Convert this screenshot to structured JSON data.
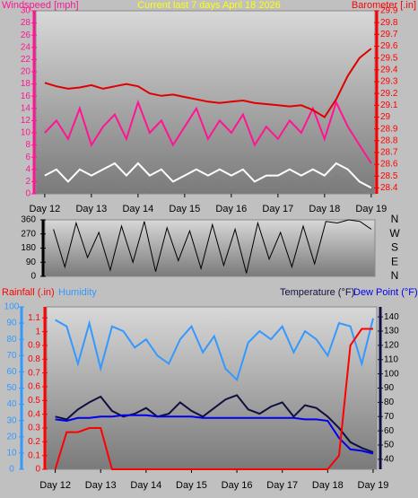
{
  "chart_data": [
    {
      "type": "line",
      "title": "Current last 7 days April 18 2026",
      "ylabel": "Windspeed [mph]",
      "y2label": "Barometer [.in]",
      "x": [
        12,
        12.25,
        12.5,
        12.75,
        13,
        13.25,
        13.5,
        13.75,
        14,
        14.25,
        14.5,
        14.75,
        15,
        15.25,
        15.5,
        15.75,
        16,
        16.25,
        16.5,
        16.75,
        17,
        17.25,
        17.5,
        17.75,
        18,
        18.25,
        18.5,
        18.75,
        19
      ],
      "xlim": [
        11.81,
        19.08
      ],
      "xticks": [
        {
          "value": 12,
          "label": "Day 12"
        },
        {
          "value": 13,
          "label": "Day 13"
        },
        {
          "value": 14,
          "label": "Day 14"
        },
        {
          "value": 15,
          "label": "Day 15"
        },
        {
          "value": 16,
          "label": "Day 16"
        },
        {
          "value": 17,
          "label": "Day 17"
        },
        {
          "value": 18,
          "label": "Day 18"
        },
        {
          "value": 19,
          "label": "Day 19"
        }
      ],
      "ylim": [
        0,
        30
      ],
      "yticks": [
        0,
        2,
        4,
        6,
        8,
        10,
        12,
        14,
        16,
        18,
        20,
        22,
        24,
        26,
        28,
        30
      ],
      "y2lim": [
        28.35,
        29.9
      ],
      "y2ticks": [
        28.4,
        28.5,
        28.6,
        28.7,
        28.8,
        28.9,
        29,
        29.1,
        29.2,
        29.3,
        29.4,
        29.5,
        29.6,
        29.7,
        29.8,
        29.9
      ],
      "series": [
        {
          "color": "#ff1493",
          "values": [
            10,
            12,
            9,
            14,
            8,
            11,
            13,
            9,
            15,
            10,
            12,
            8,
            11,
            14,
            9,
            12,
            10,
            13,
            8,
            11,
            9,
            12,
            10,
            14,
            9,
            15,
            11,
            8,
            5
          ]
        },
        {
          "color": "#808080",
          "values": [
            1,
            2,
            1,
            2,
            1,
            2,
            2,
            1,
            2,
            1,
            2,
            1,
            1,
            2,
            1,
            2,
            1,
            2,
            1,
            1,
            1,
            2,
            1,
            2,
            1,
            3,
            2,
            1,
            0
          ]
        },
        {
          "color": "#ffffff",
          "values": [
            3,
            4,
            2,
            4,
            3,
            4,
            5,
            3,
            5,
            3,
            4,
            2,
            3,
            4,
            3,
            4,
            3,
            4,
            2,
            3,
            3,
            4,
            3,
            4,
            3,
            5,
            4,
            2,
            1
          ]
        },
        {
          "color": "#e00000",
          "axis": "y2",
          "values": [
            29.29,
            29.26,
            29.24,
            29.25,
            29.27,
            29.24,
            29.26,
            29.28,
            29.26,
            29.2,
            29.18,
            29.19,
            29.17,
            29.15,
            29.13,
            29.12,
            29.13,
            29.14,
            29.12,
            29.11,
            29.1,
            29.09,
            29.1,
            29.06,
            29.0,
            29.15,
            29.35,
            29.5,
            29.58
          ]
        }
      ]
    },
    {
      "type": "line",
      "x": [
        12,
        12.25,
        12.5,
        12.75,
        13,
        13.25,
        13.5,
        13.75,
        14,
        14.25,
        14.5,
        14.75,
        15,
        15.25,
        15.5,
        15.75,
        16,
        16.25,
        16.5,
        16.75,
        17,
        17.25,
        17.5,
        17.75,
        18,
        18.25,
        18.5,
        18.75,
        19
      ],
      "xlim": [
        11.81,
        19.08
      ],
      "ylim": [
        0,
        360
      ],
      "yticks": [
        0,
        90,
        180,
        270,
        360
      ],
      "y2lim": [
        0,
        360
      ],
      "y2ticks": [
        {
          "value": 360,
          "label": "N"
        },
        {
          "value": 270,
          "label": "W"
        },
        {
          "value": 180,
          "label": "S"
        },
        {
          "value": 90,
          "label": "E"
        },
        {
          "value": 0,
          "label": "N"
        }
      ],
      "series": [
        {
          "color": "#000000",
          "values": [
            300,
            60,
            340,
            120,
            280,
            40,
            320,
            90,
            350,
            30,
            310,
            100,
            290,
            50,
            330,
            70,
            300,
            20,
            340,
            110,
            280,
            60,
            320,
            80,
            350,
            340,
            360,
            350,
            300
          ]
        }
      ]
    },
    {
      "type": "line",
      "x": [
        12,
        12.25,
        12.5,
        12.75,
        13,
        13.25,
        13.5,
        13.75,
        14,
        14.25,
        14.5,
        14.75,
        15,
        15.25,
        15.5,
        15.75,
        16,
        16.25,
        16.5,
        16.75,
        17,
        17.25,
        17.5,
        17.75,
        18,
        18.25,
        18.5,
        18.75,
        19
      ],
      "xlim": [
        11.81,
        19.08
      ],
      "xticks": [
        {
          "value": 12,
          "label": "Day 12"
        },
        {
          "value": 13,
          "label": "Day 13"
        },
        {
          "value": 14,
          "label": "Day 14"
        },
        {
          "value": 15,
          "label": "Day 15"
        },
        {
          "value": 16,
          "label": "Day 16"
        },
        {
          "value": 17,
          "label": "Day 17"
        },
        {
          "value": 18,
          "label": "Day 18"
        },
        {
          "value": 19,
          "label": "Day 19"
        }
      ],
      "ylim": [
        0,
        1.18
      ],
      "yticks": [
        0,
        0.1,
        0.2,
        0.3,
        0.4,
        0.5,
        0.6,
        0.7,
        0.8,
        0.9,
        1,
        1.1
      ],
      "y2lim": [
        33,
        147
      ],
      "y2ticks": [
        40,
        50,
        60,
        70,
        80,
        90,
        100,
        110,
        120,
        130,
        140
      ],
      "y3lim": [
        0,
        100
      ],
      "y3ticks": [
        0,
        10,
        20,
        30,
        40,
        50,
        60,
        70,
        80,
        90,
        100
      ],
      "series": [
        {
          "name": "Humidity",
          "color": "#3399ff",
          "axis": "y3",
          "values": [
            92,
            88,
            65,
            90,
            62,
            88,
            85,
            75,
            80,
            70,
            65,
            80,
            88,
            72,
            82,
            62,
            55,
            78,
            85,
            80,
            88,
            72,
            85,
            80,
            70,
            90,
            88,
            65,
            93
          ]
        },
        {
          "name": "Temperature (°F)",
          "color": "#101040",
          "axis": "y2",
          "values": [
            70,
            68,
            75,
            80,
            84,
            74,
            70,
            72,
            76,
            70,
            72,
            80,
            74,
            70,
            76,
            82,
            85,
            75,
            72,
            77,
            80,
            70,
            78,
            76,
            70,
            62,
            52,
            48,
            45
          ]
        },
        {
          "name": "Dew Point (°F)",
          "color": "#0000ee",
          "axis": "y2",
          "values": [
            68,
            67,
            69,
            69,
            70,
            70,
            71,
            71,
            71,
            70,
            70,
            70,
            70,
            69,
            69,
            69,
            69,
            69,
            69,
            69,
            69,
            69,
            68,
            68,
            67,
            55,
            47,
            46,
            44
          ]
        },
        {
          "name": "Rainfall (.in)",
          "color": "#ff0000",
          "values": [
            0,
            0.27,
            0.27,
            0.3,
            0.3,
            0,
            0,
            0,
            0,
            0,
            0,
            0,
            0,
            0,
            0,
            0,
            0,
            0,
            0,
            0,
            0,
            0,
            0,
            0,
            0,
            0.1,
            0.9,
            1.02,
            1.02
          ]
        }
      ]
    }
  ]
}
